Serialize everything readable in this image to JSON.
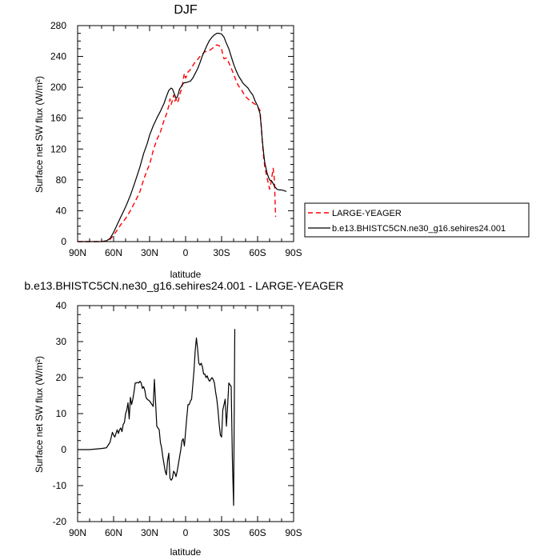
{
  "chart_data": [
    {
      "type": "line",
      "title": "DJF",
      "xlabel": "latitude",
      "ylabel": "Surface net SW flux (W/m²)",
      "xlim": [
        90,
        -90
      ],
      "ylim": [
        0,
        280
      ],
      "x_tick_values": [
        90,
        60,
        30,
        0,
        -30,
        -60,
        -90
      ],
      "x_tick_labels": [
        "90N",
        "60N",
        "30N",
        "0",
        "30S",
        "60S",
        "90S"
      ],
      "y_tick_values": [
        0,
        40,
        80,
        120,
        160,
        200,
        240,
        280
      ],
      "y_tick_labels": [
        "0",
        "40",
        "80",
        "120",
        "160",
        "200",
        "240",
        "280"
      ],
      "legend_position": "right",
      "series": [
        {
          "name": "LARGE-YEAGER",
          "color": "#ff0000",
          "dash": "dashed",
          "points": [
            [
              90,
              0
            ],
            [
              80,
              0
            ],
            [
              70,
              0
            ],
            [
              66,
              1
            ],
            [
              63,
              3
            ],
            [
              60,
              8
            ],
            [
              57,
              15
            ],
            [
              54,
              22
            ],
            [
              50,
              30
            ],
            [
              46,
              40
            ],
            [
              42,
              52
            ],
            [
              38,
              65
            ],
            [
              35,
              80
            ],
            [
              32,
              93
            ],
            [
              30,
              100
            ],
            [
              27,
              118
            ],
            [
              24,
              132
            ],
            [
              21,
              142
            ],
            [
              18,
              157
            ],
            [
              16,
              165
            ],
            [
              14,
              176
            ],
            [
              13,
              185
            ],
            [
              12,
              178
            ],
            [
              11,
              183
            ],
            [
              10,
              190
            ],
            [
              9,
              182
            ],
            [
              8,
              185
            ],
            [
              7,
              180
            ],
            [
              6,
              183
            ],
            [
              5,
              190
            ],
            [
              4,
              195
            ],
            [
              3,
              200
            ],
            [
              2,
              210
            ],
            [
              1,
              218
            ],
            [
              0,
              212
            ],
            [
              -1,
              215
            ],
            [
              -2,
              220
            ],
            [
              -4,
              223
            ],
            [
              -6,
              228
            ],
            [
              -8,
              233
            ],
            [
              -10,
              236
            ],
            [
              -12,
              240
            ],
            [
              -14,
              243
            ],
            [
              -16,
              246
            ],
            [
              -18,
              247
            ],
            [
              -20,
              248
            ],
            [
              -22,
              250
            ],
            [
              -24,
              253
            ],
            [
              -26,
              255
            ],
            [
              -28,
              254
            ],
            [
              -30,
              250
            ],
            [
              -31,
              242
            ],
            [
              -32,
              237
            ],
            [
              -34,
              238
            ],
            [
              -36,
              232
            ],
            [
              -38,
              225
            ],
            [
              -40,
              217
            ],
            [
              -42,
              209
            ],
            [
              -44,
              202
            ],
            [
              -46,
              198
            ],
            [
              -48,
              193
            ],
            [
              -50,
              188
            ],
            [
              -52,
              185
            ],
            [
              -54,
              182
            ],
            [
              -56,
              180
            ],
            [
              -58,
              178
            ],
            [
              -60,
              175
            ],
            [
              -62,
              170
            ],
            [
              -63,
              150
            ],
            [
              -64,
              128
            ],
            [
              -65,
              110
            ],
            [
              -66,
              97
            ],
            [
              -67,
              89
            ],
            [
              -68,
              82
            ],
            [
              -69,
              75
            ],
            [
              -70,
              68
            ],
            [
              -71,
              75
            ],
            [
              -72,
              85
            ],
            [
              -73,
              95
            ],
            [
              -74,
              80
            ],
            [
              -75,
              32
            ]
          ]
        },
        {
          "name": "b.e13.BHISTC5CN.ne30_g16.sehires24.001",
          "color": "#000000",
          "dash": "solid",
          "points": [
            [
              90,
              0
            ],
            [
              80,
              0
            ],
            [
              70,
              0
            ],
            [
              66,
              1
            ],
            [
              63,
              4
            ],
            [
              60,
              12
            ],
            [
              57,
              22
            ],
            [
              54,
              32
            ],
            [
              50,
              45
            ],
            [
              46,
              60
            ],
            [
              42,
              78
            ],
            [
              38,
              97
            ],
            [
              35,
              114
            ],
            [
              32,
              127
            ],
            [
              30,
              138
            ],
            [
              27,
              150
            ],
            [
              24,
              160
            ],
            [
              21,
              169
            ],
            [
              18,
              179
            ],
            [
              16,
              188
            ],
            [
              14,
              196
            ],
            [
              12,
              199
            ],
            [
              11,
              198
            ],
            [
              10,
              194
            ],
            [
              9,
              190
            ],
            [
              8,
              186
            ],
            [
              7,
              187
            ],
            [
              6,
              192
            ],
            [
              5,
              198
            ],
            [
              4,
              200
            ],
            [
              3,
              203
            ],
            [
              2,
              205
            ],
            [
              1,
              206
            ],
            [
              0,
              206
            ],
            [
              -2,
              207
            ],
            [
              -4,
              208
            ],
            [
              -6,
              212
            ],
            [
              -8,
              218
            ],
            [
              -10,
              224
            ],
            [
              -12,
              232
            ],
            [
              -14,
              241
            ],
            [
              -16,
              248
            ],
            [
              -18,
              255
            ],
            [
              -20,
              261
            ],
            [
              -22,
              265
            ],
            [
              -24,
              268
            ],
            [
              -26,
              270
            ],
            [
              -28,
              270
            ],
            [
              -30,
              269
            ],
            [
              -32,
              265
            ],
            [
              -34,
              257
            ],
            [
              -36,
              250
            ],
            [
              -38,
              240
            ],
            [
              -40,
              230
            ],
            [
              -42,
              222
            ],
            [
              -44,
              215
            ],
            [
              -46,
              210
            ],
            [
              -48,
              205
            ],
            [
              -50,
              202
            ],
            [
              -52,
              199
            ],
            [
              -54,
              194
            ],
            [
              -56,
              190
            ],
            [
              -58,
              182
            ],
            [
              -60,
              176
            ],
            [
              -62,
              166
            ],
            [
              -63,
              150
            ],
            [
              -64,
              130
            ],
            [
              -65,
              115
            ],
            [
              -66,
              102
            ],
            [
              -67,
              95
            ],
            [
              -68,
              88
            ],
            [
              -69,
              84
            ],
            [
              -70,
              80
            ],
            [
              -72,
              78
            ],
            [
              -74,
              72
            ],
            [
              -76,
              68
            ],
            [
              -78,
              67
            ],
            [
              -80,
              67
            ],
            [
              -82,
              66
            ],
            [
              -84,
              65
            ]
          ]
        }
      ]
    },
    {
      "type": "line",
      "title": "b.e13.BHISTC5CN.ne30_g16.sehires24.001 - LARGE-YEAGER",
      "xlabel": "latitude",
      "ylabel": "Surface net SW flux (W/m²)",
      "xlim": [
        90,
        -90
      ],
      "ylim": [
        -20,
        40
      ],
      "x_tick_values": [
        90,
        60,
        30,
        0,
        -30,
        -60,
        -90
      ],
      "x_tick_labels": [
        "90N",
        "60N",
        "30N",
        "0",
        "30S",
        "60S",
        "90S"
      ],
      "y_tick_values": [
        -20,
        -10,
        0,
        10,
        20,
        30,
        40
      ],
      "y_tick_labels": [
        "-20",
        "-10",
        "0",
        "10",
        "20",
        "30",
        "40"
      ],
      "series": [
        {
          "color": "#000000",
          "dash": "solid",
          "points": [
            [
              90,
              0
            ],
            [
              80,
              0
            ],
            [
              70,
              0.3
            ],
            [
              66,
              0.5
            ],
            [
              63,
              2
            ],
            [
              61,
              4.8
            ],
            [
              60,
              4
            ],
            [
              59,
              3.5
            ],
            [
              58,
              4.5
            ],
            [
              57,
              5.5
            ],
            [
              56,
              4.5
            ],
            [
              55,
              5.5
            ],
            [
              54,
              6
            ],
            [
              53,
              5
            ],
            [
              52,
              7
            ],
            [
              51,
              7.5
            ],
            [
              50,
              10
            ],
            [
              49,
              11
            ],
            [
              48,
              13
            ],
            [
              47,
              8.5
            ],
            [
              46,
              14.5
            ],
            [
              45,
              12.5
            ],
            [
              44,
              14
            ],
            [
              43,
              16
            ],
            [
              42,
              18.5
            ],
            [
              41,
              18.5
            ],
            [
              40,
              18.7
            ],
            [
              39,
              18.5
            ],
            [
              38,
              19
            ],
            [
              37,
              18.5
            ],
            [
              36,
              17
            ],
            [
              35,
              17.5
            ],
            [
              34,
              16.5
            ],
            [
              33,
              14.5
            ],
            [
              32,
              14
            ],
            [
              30,
              13.5
            ],
            [
              29,
              13
            ],
            [
              28,
              12.5
            ],
            [
              27,
              12
            ],
            [
              26,
              19.5
            ],
            [
              25,
              13
            ],
            [
              24,
              6.5
            ],
            [
              23,
              6
            ],
            [
              22,
              5.5
            ],
            [
              21,
              2
            ],
            [
              20,
              0.5
            ],
            [
              19,
              -2
            ],
            [
              18,
              -4
            ],
            [
              17,
              -6
            ],
            [
              16,
              -7
            ],
            [
              15,
              -3
            ],
            [
              14,
              -1
            ],
            [
              13,
              -8
            ],
            [
              12,
              -8.5
            ],
            [
              11,
              -8
            ],
            [
              10,
              -6
            ],
            [
              9,
              -6.5
            ],
            [
              8,
              -7.5
            ],
            [
              7,
              -6
            ],
            [
              6,
              -4
            ],
            [
              5,
              -2
            ],
            [
              4,
              0
            ],
            [
              3,
              2.5
            ],
            [
              2,
              3
            ],
            [
              1,
              1
            ],
            [
              0,
              5
            ],
            [
              -1,
              9
            ],
            [
              -2,
              12.5
            ],
            [
              -3,
              12.5
            ],
            [
              -4,
              13.5
            ],
            [
              -5,
              14
            ],
            [
              -6,
              18
            ],
            [
              -7,
              22
            ],
            [
              -8,
              27.5
            ],
            [
              -9,
              31
            ],
            [
              -10,
              28
            ],
            [
              -11,
              24
            ],
            [
              -12,
              23.5
            ],
            [
              -13,
              24
            ],
            [
              -14,
              23
            ],
            [
              -15,
              21
            ],
            [
              -16,
              21
            ],
            [
              -17,
              20
            ],
            [
              -18,
              20.5
            ],
            [
              -19,
              19.5
            ],
            [
              -20,
              19
            ],
            [
              -21,
              19.5
            ],
            [
              -22,
              20
            ],
            [
              -23,
              19.5
            ],
            [
              -24,
              18.5
            ],
            [
              -25,
              16
            ],
            [
              -26,
              14
            ],
            [
              -27,
              11
            ],
            [
              -28,
              7
            ],
            [
              -29,
              4
            ],
            [
              -30,
              3.5
            ],
            [
              -31,
              11
            ],
            [
              -32,
              12.5
            ],
            [
              -33,
              14
            ],
            [
              -34,
              6.5
            ],
            [
              -35,
              12
            ],
            [
              -36,
              18.5
            ],
            [
              -37,
              18
            ],
            [
              -38,
              17.5
            ],
            [
              -39,
              -3
            ],
            [
              -40,
              -15.5
            ],
            [
              -41,
              33.5
            ]
          ]
        }
      ]
    }
  ]
}
